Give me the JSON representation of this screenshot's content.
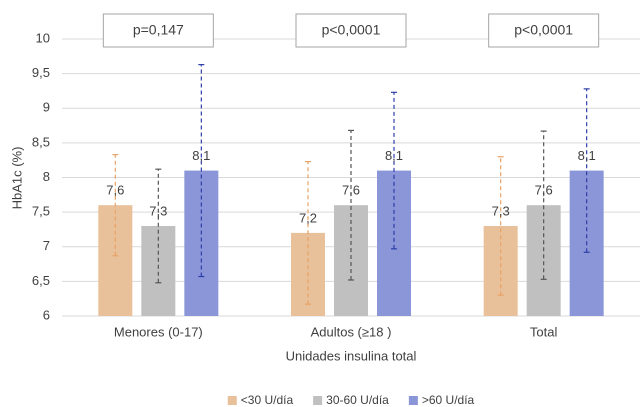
{
  "chart_data": {
    "type": "bar",
    "y_label": "HbA1c (%)",
    "x_label": "Unidades insulina total",
    "categories": [
      "Menores (0-17)",
      "Adultos (≥18 )",
      "Total"
    ],
    "annotations": [
      "p=0,147",
      "p<0,0001",
      "p<0,0001"
    ],
    "series": [
      {
        "name": "<30 U/día",
        "color": "#e8c09a",
        "error_color": "#e8a366",
        "values": [
          7.6,
          7.2,
          7.3
        ],
        "value_labels": [
          "7,6",
          "7,2",
          "7,3"
        ],
        "errors": [
          0.73,
          1.03,
          1.0
        ]
      },
      {
        "name": "30-60 U/día",
        "color": "#c0c0c0",
        "error_color": "#555555",
        "values": [
          7.3,
          7.6,
          7.6
        ],
        "value_labels": [
          "7,3",
          "7,6",
          "7,6"
        ],
        "errors": [
          0.82,
          1.08,
          1.07
        ]
      },
      {
        "name": ">60 U/día",
        "color": "#8a96d8",
        "error_color": "#2e3ea8",
        "values": [
          8.1,
          8.1,
          8.1
        ],
        "value_labels": [
          "8,1",
          "8,1",
          "8,1"
        ],
        "errors": [
          1.53,
          1.13,
          1.18
        ]
      }
    ],
    "ylim": [
      6,
      10
    ],
    "yticks": [
      6,
      {
        "value": 6.5,
        "label": "6,5"
      },
      7,
      {
        "value": 7.5,
        "label": "7,5"
      },
      8,
      {
        "value": 8.5,
        "label": "8,5"
      },
      9,
      {
        "value": 9.5,
        "label": "9,5"
      },
      10
    ],
    "grid": true,
    "legend": "bottom"
  }
}
